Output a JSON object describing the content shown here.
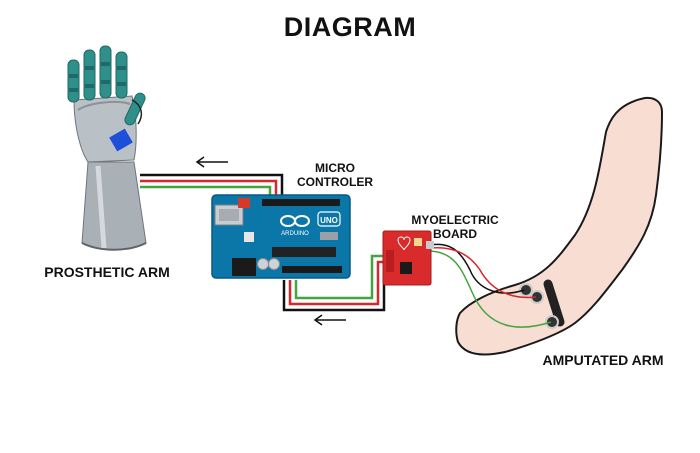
{
  "title": "DIAGRAM",
  "labels": {
    "micro_controler": [
      "MICRO",
      "CONTROLER"
    ],
    "myoelectric_board": [
      "MYOELECTRIC",
      "BOARD"
    ],
    "prosthetic_arm": "PROSTHETIC ARM",
    "amputated_arm": "AMPUTATED ARM"
  },
  "board_text": {
    "uno": "UNO",
    "arduino": "ARDUINO"
  },
  "icons": {
    "top_arrow": "left-arrow-icon",
    "bottom_arrow": "left-arrow-icon"
  },
  "colors": {
    "wire_red": "#d8262b",
    "wire_green": "#43a53c",
    "wire_black": "#111111",
    "arduino_blue": "#0b76a8",
    "myo_board_red": "#d92b2b",
    "prosthetic_teal": "#2f8f8a",
    "prosthetic_grey": "#a9b0b6",
    "skin": "#f8ddd3"
  }
}
